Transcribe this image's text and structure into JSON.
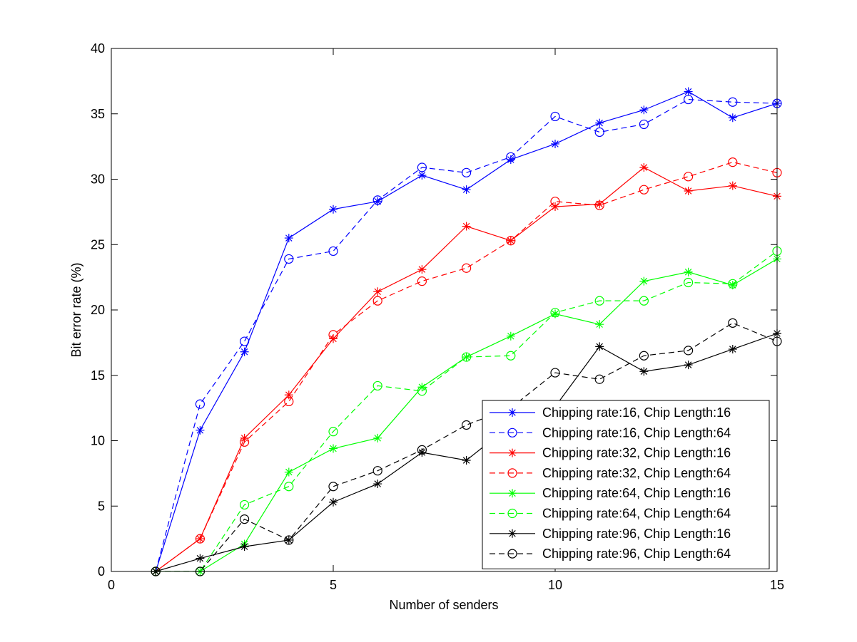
{
  "chart_data": {
    "type": "line",
    "xlabel": "Number of senders",
    "ylabel": "Bit error rate (%)",
    "xlim": [
      0,
      15
    ],
    "ylim": [
      0,
      40
    ],
    "xticks": [
      0,
      5,
      10,
      15
    ],
    "yticks": [
      0,
      5,
      10,
      15,
      20,
      25,
      30,
      35,
      40
    ],
    "grid": false,
    "legend_position": "bottom-right",
    "x": [
      1,
      2,
      3,
      4,
      5,
      6,
      7,
      8,
      9,
      10,
      11,
      12,
      13,
      14,
      15
    ],
    "series": [
      {
        "name": "Chipping rate:16, Chip Length:16",
        "color": "#0000ff",
        "dash": "solid",
        "marker": "star",
        "values": [
          0,
          10.8,
          16.8,
          25.5,
          27.7,
          28.3,
          30.3,
          29.2,
          31.5,
          32.7,
          34.3,
          35.3,
          36.7,
          34.7,
          35.8
        ]
      },
      {
        "name": "Chipping rate:16, Chip Length:64",
        "color": "#0000ff",
        "dash": "dashed",
        "marker": "circle",
        "values": [
          0,
          12.8,
          17.6,
          23.9,
          24.5,
          28.4,
          30.9,
          30.5,
          31.7,
          34.8,
          33.6,
          34.2,
          36.1,
          35.9,
          35.8
        ]
      },
      {
        "name": "Chipping rate:32, Chip Length:16",
        "color": "#ff0000",
        "dash": "solid",
        "marker": "star",
        "values": [
          0,
          2.5,
          10.2,
          13.5,
          17.8,
          21.4,
          23.1,
          26.4,
          25.3,
          27.9,
          28.1,
          30.9,
          29.1,
          29.5,
          28.7
        ]
      },
      {
        "name": "Chipping rate:32, Chip Length:64",
        "color": "#ff0000",
        "dash": "dashed",
        "marker": "circle",
        "values": [
          0,
          2.5,
          9.9,
          13.0,
          18.1,
          20.7,
          22.2,
          23.2,
          25.3,
          28.3,
          28.0,
          29.2,
          30.2,
          31.3,
          30.5
        ]
      },
      {
        "name": "Chipping rate:64, Chip Length:16",
        "color": "#00ff00",
        "dash": "solid",
        "marker": "star",
        "values": [
          0,
          0,
          2.1,
          7.6,
          9.4,
          10.2,
          14.1,
          16.4,
          18.0,
          19.7,
          18.9,
          22.2,
          22.9,
          21.9,
          23.9
        ]
      },
      {
        "name": "Chipping rate:64, Chip Length:64",
        "color": "#00ff00",
        "dash": "dashed",
        "marker": "circle",
        "values": [
          0,
          0,
          5.1,
          6.5,
          10.7,
          14.2,
          13.8,
          16.4,
          16.5,
          19.8,
          20.7,
          20.7,
          22.1,
          22.0,
          24.5
        ]
      },
      {
        "name": "Chipping rate:96, Chip Length:16",
        "color": "#000000",
        "dash": "solid",
        "marker": "star",
        "values": [
          0,
          1.0,
          1.9,
          2.4,
          5.3,
          6.7,
          9.1,
          8.5,
          11.2,
          12.6,
          17.2,
          15.3,
          15.8,
          17.0,
          18.2
        ]
      },
      {
        "name": "Chipping rate:96, Chip Length:64",
        "color": "#000000",
        "dash": "dashed",
        "marker": "circle",
        "values": [
          0,
          0,
          4.0,
          2.4,
          6.5,
          7.7,
          9.3,
          11.2,
          12.5,
          15.2,
          14.7,
          16.5,
          16.9,
          19.0,
          17.6
        ]
      }
    ]
  }
}
